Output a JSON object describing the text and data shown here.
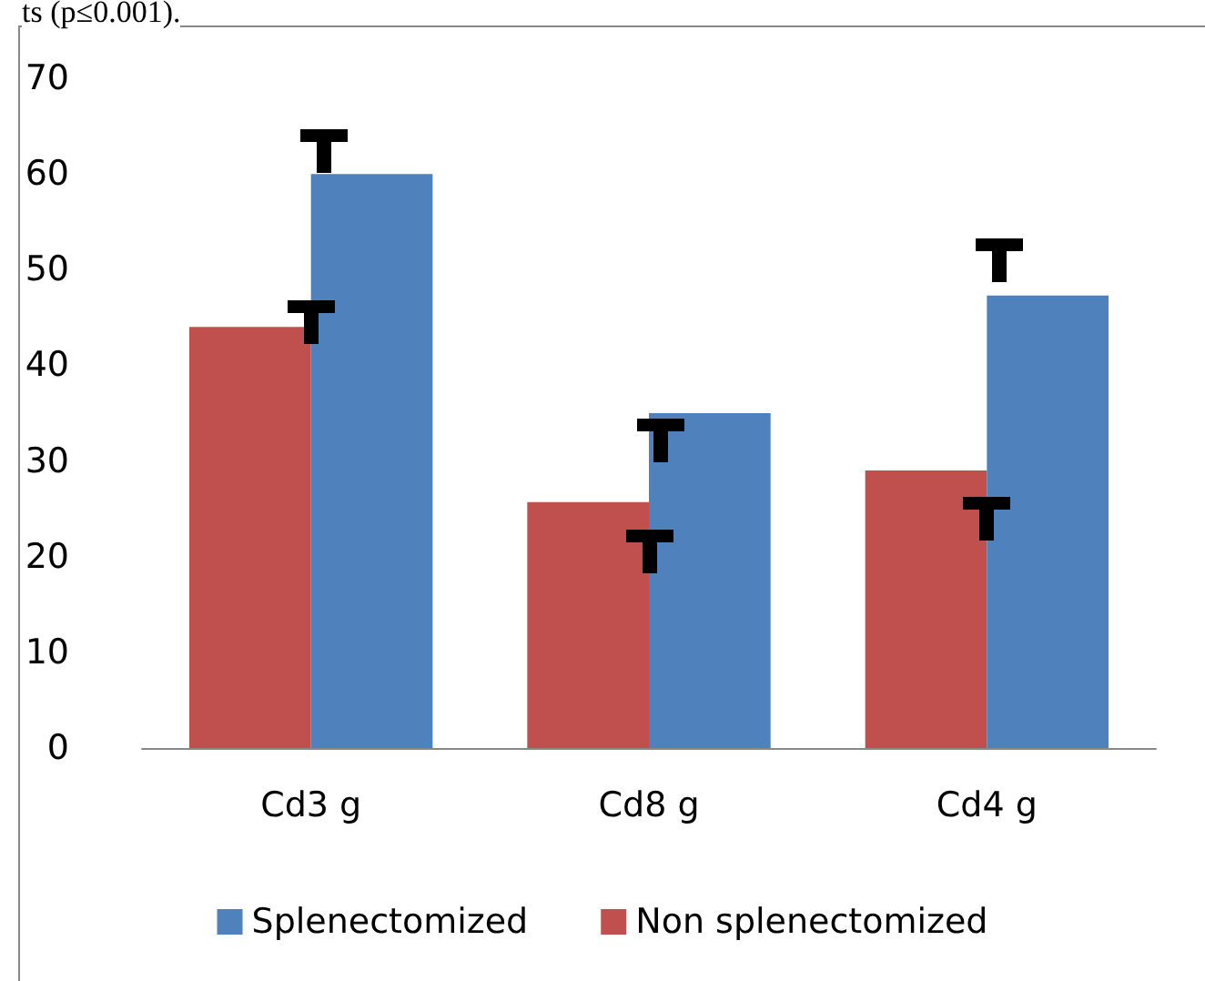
{
  "chart_data": {
    "type": "bar",
    "annotations": [
      "ts (p≤0.001)."
    ],
    "categories": [
      "Cd3 g",
      "Cd8 g",
      "Cd4 g"
    ],
    "series": [
      {
        "name": "Splenectomized",
        "color": "#4f81bd",
        "values": [
          60,
          35,
          47.3
        ]
      },
      {
        "name": "Non splenectomized",
        "color": "#c0504d",
        "values": [
          44,
          25.7,
          29
        ]
      }
    ],
    "ylim": [
      0,
      70
    ],
    "yticks": [
      0,
      10,
      20,
      30,
      40,
      50,
      60,
      70
    ],
    "grid": false,
    "legend": "bottom"
  }
}
